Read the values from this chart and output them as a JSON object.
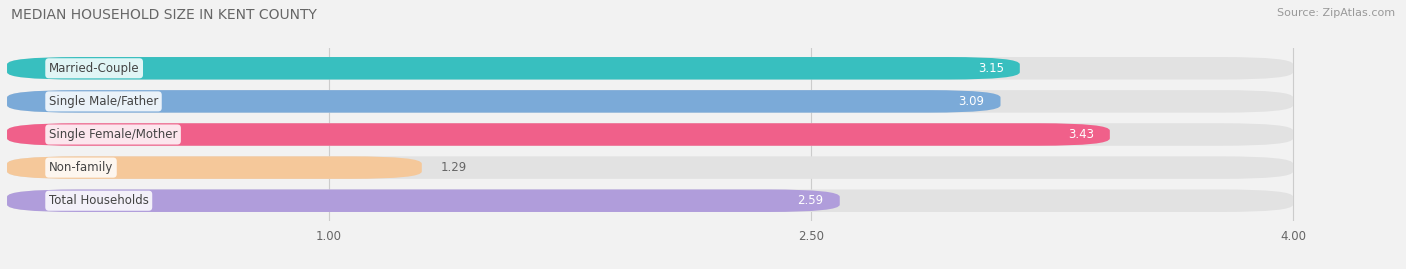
{
  "title": "MEDIAN HOUSEHOLD SIZE IN KENT COUNTY",
  "source": "Source: ZipAtlas.com",
  "categories": [
    "Married-Couple",
    "Single Male/Father",
    "Single Female/Mother",
    "Non-family",
    "Total Households"
  ],
  "values": [
    3.15,
    3.09,
    3.43,
    1.29,
    2.59
  ],
  "bar_colors": [
    "#38bfbf",
    "#7baad8",
    "#f0608a",
    "#f5c89a",
    "#b09ddb"
  ],
  "background_color": "#f0f0f0",
  "bar_bg_color": "#e4e4e4",
  "xlim_min": 0,
  "xlim_max": 4.22,
  "data_max": 4.0,
  "xticks": [
    1.0,
    2.5,
    4.0
  ],
  "title_fontsize": 10,
  "source_fontsize": 8,
  "label_fontsize": 8.5,
  "value_fontsize": 8.5,
  "bar_height": 0.68,
  "value_colors": [
    "white",
    "white",
    "white",
    "#888888",
    "#555555"
  ]
}
